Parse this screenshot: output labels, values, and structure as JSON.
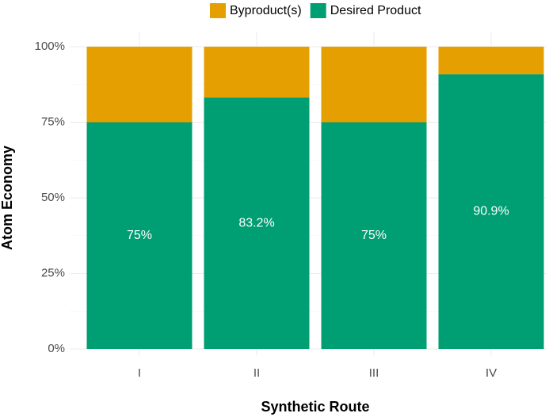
{
  "chart_data": {
    "type": "stacked_bar",
    "x_label": "Synthetic Route",
    "y_label": "Atom Economy",
    "categories": [
      "I",
      "II",
      "III",
      "IV"
    ],
    "series": [
      {
        "name": "Desired Product",
        "color": "#009e73",
        "values": [
          75,
          83.2,
          75,
          90.9
        ],
        "value_labels": [
          "75%",
          "83.2%",
          "75%",
          "90.9%"
        ]
      },
      {
        "name": "Byproduct(s)",
        "color": "#e69f00",
        "values": [
          25,
          16.8,
          25,
          9.1
        ]
      }
    ],
    "ylim": [
      0,
      100
    ],
    "yticks": [
      {
        "value": 0,
        "label": "0%"
      },
      {
        "value": 25,
        "label": "25%"
      },
      {
        "value": 50,
        "label": "50%"
      },
      {
        "value": 75,
        "label": "75%"
      },
      {
        "value": 100,
        "label": "100%"
      }
    ],
    "grid": true,
    "legend": "top"
  }
}
